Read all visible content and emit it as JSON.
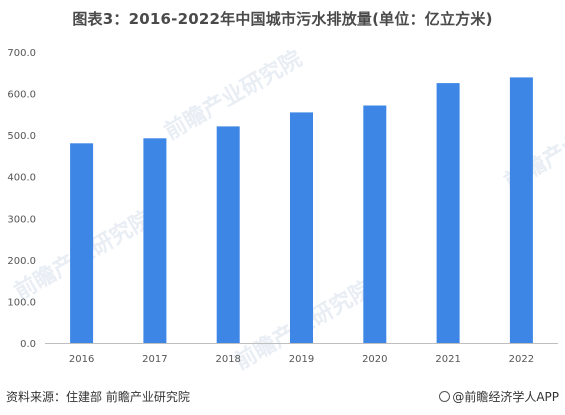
{
  "title": "图表3：2016-2022年中国城市污水排放量(单位：亿立方米)",
  "source": "资料来源：住建部 前瞻产业研究院",
  "brand": "@前瞻经济学人APP",
  "watermark": "前瞻产业研究院",
  "colors": {
    "bar": "#3d86e6",
    "axis": "#bfbfbf",
    "text": "#555555"
  },
  "chart_data": {
    "type": "bar",
    "categories": [
      "2016",
      "2017",
      "2018",
      "2019",
      "2020",
      "2021",
      "2022"
    ],
    "values": [
      480.3,
      492.4,
      521.1,
      554.6,
      571.4,
      625.1,
      638.9
    ],
    "yticks": [
      "0.0",
      "100.0",
      "200.0",
      "300.0",
      "400.0",
      "500.0",
      "600.0",
      "700.0"
    ],
    "ylim": [
      0,
      700
    ],
    "grid": false,
    "xlabel": "",
    "ylabel": ""
  }
}
